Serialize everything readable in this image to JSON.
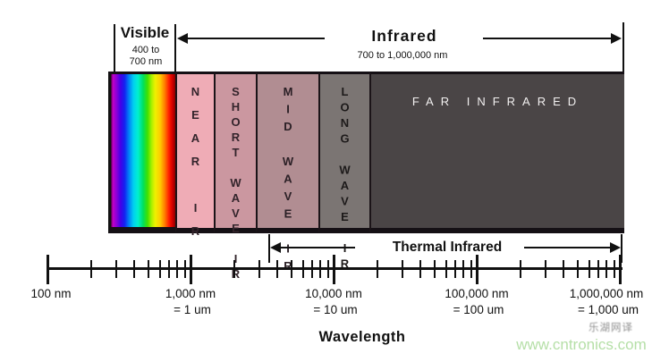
{
  "header": {
    "visible": {
      "label": "Visible",
      "range_line1": "400 to",
      "range_line2": "700 nm"
    },
    "infrared": {
      "label": "Infrared",
      "range": "700 to 1,000,000 nm"
    }
  },
  "bands": [
    {
      "name": "visible-spectrum",
      "label": "",
      "type": "rainbow"
    },
    {
      "name": "near-ir",
      "label": "NEAR IR",
      "color": "#efacb6",
      "text_color": "#33242b"
    },
    {
      "name": "short-wave-ir",
      "label": "SHORT WAVE IR",
      "color": "#cb97a0",
      "text_color": "#33242b"
    },
    {
      "name": "mid-wave-ir",
      "label": "MID WAVE IR",
      "color": "#b18d92",
      "text_color": "#2b2026"
    },
    {
      "name": "long-wave-ir",
      "label": "LONG WAVE IR",
      "color": "#7b7573",
      "text_color": "#1d1a1a"
    },
    {
      "name": "far-infrared",
      "label": "FAR INFRARED",
      "color": "#4a4546",
      "text_color": "#f2f0f0"
    }
  ],
  "thermal": {
    "label": "Thermal Infrared"
  },
  "axis": {
    "title": "Wavelength",
    "scale": "log",
    "tick_labels": [
      {
        "nm": "100 nm",
        "um": ""
      },
      {
        "nm": "1,000 nm",
        "um": "= 1 um"
      },
      {
        "nm": "10,000 nm",
        "um": "= 10 um"
      },
      {
        "nm": "100,000 nm",
        "um": "= 100 um"
      },
      {
        "nm": "1,000,000 nm",
        "um": "= 1,000 um"
      }
    ]
  },
  "watermark": {
    "text_cn": "乐湖网译",
    "url": "www.cntronics.com"
  },
  "colors": {
    "line": "#111111",
    "background": "#ffffff",
    "watermark_green": "#b5dfa7"
  }
}
